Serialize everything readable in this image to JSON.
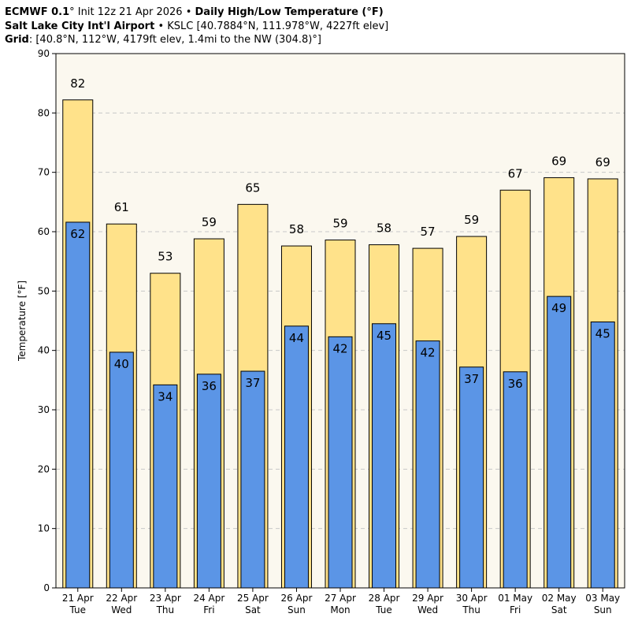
{
  "header": {
    "model": "ECMWF 0.1",
    "init_sep": "° Init 12z 21 Apr 2026 •",
    "chart_title": "Daily High/Low Temperature (°F)",
    "station_name": "Salt Lake City Int'l Airport",
    "station_sep": "•",
    "station_info": "KSLC [40.7884°N, 111.978°W, 4227ft elev]",
    "grid_label": "Grid",
    "grid_info": ": [40.8°N, 112°W, 4179ft elev, 1.4mi to the NW (304.8)°]"
  },
  "colors": {
    "high_fill": "#ffe28a",
    "low_fill": "#5b95e6",
    "plot_bg": "#fbf8ef",
    "grid": "#c8c8c8"
  },
  "chart_data": {
    "type": "bar",
    "title": "Daily High/Low Temperature (°F)",
    "xlabel": "",
    "ylabel": "Temperature [°F]",
    "ylim": [
      0,
      90
    ],
    "yticks": [
      0,
      10,
      20,
      30,
      40,
      50,
      60,
      70,
      80,
      90
    ],
    "grid": true,
    "categories": [
      {
        "date": "21 Apr",
        "day": "Tue"
      },
      {
        "date": "22 Apr",
        "day": "Wed"
      },
      {
        "date": "23 Apr",
        "day": "Thu"
      },
      {
        "date": "24 Apr",
        "day": "Fri"
      },
      {
        "date": "25 Apr",
        "day": "Sat"
      },
      {
        "date": "26 Apr",
        "day": "Sun"
      },
      {
        "date": "27 Apr",
        "day": "Mon"
      },
      {
        "date": "28 Apr",
        "day": "Tue"
      },
      {
        "date": "29 Apr",
        "day": "Wed"
      },
      {
        "date": "30 Apr",
        "day": "Thu"
      },
      {
        "date": "01 May",
        "day": "Fri"
      },
      {
        "date": "02 May",
        "day": "Sat"
      },
      {
        "date": "03 May",
        "day": "Sun"
      }
    ],
    "series": [
      {
        "name": "High",
        "values": [
          82.2,
          61.3,
          53.0,
          58.8,
          64.6,
          57.6,
          58.6,
          57.8,
          57.2,
          59.2,
          67.0,
          69.1,
          68.9
        ],
        "labels": [
          "82",
          "61",
          "53",
          "59",
          "65",
          "58",
          "59",
          "58",
          "57",
          "59",
          "67",
          "69",
          "69"
        ]
      },
      {
        "name": "Low",
        "values": [
          61.6,
          39.7,
          34.2,
          36.0,
          36.5,
          44.1,
          42.3,
          44.5,
          41.6,
          37.2,
          36.4,
          49.1,
          44.8
        ],
        "labels": [
          "62",
          "40",
          "34",
          "36",
          "37",
          "44",
          "42",
          "45",
          "42",
          "37",
          "36",
          "49",
          "45"
        ]
      }
    ]
  }
}
